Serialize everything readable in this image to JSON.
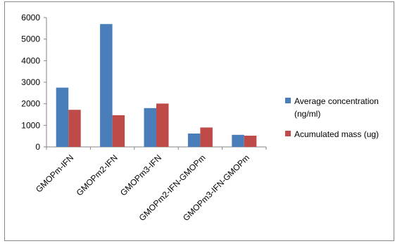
{
  "chart_data": {
    "type": "bar",
    "categories": [
      "GMOPm-IFN",
      "GMOPm2-IFN",
      "GMOPm3-IFN",
      "GMOPm2-IFN-GMOPm",
      "GMOPm3-IFN-GMOPm"
    ],
    "series": [
      {
        "name": "Average concentration (ng/ml)",
        "name_lines": [
          "Average concentration",
          "(ng/ml)"
        ],
        "color": "#4a7ebb",
        "values": [
          2750,
          5700,
          1800,
          620,
          560
        ]
      },
      {
        "name": "Acumulated mass (ug)",
        "color": "#be4b48",
        "values": [
          1720,
          1470,
          2010,
          900,
          520
        ]
      }
    ],
    "y_ticks": [
      0,
      1000,
      2000,
      3000,
      4000,
      5000,
      6000
    ],
    "y_tick_labels": [
      "0",
      "1000",
      "2000",
      "3000",
      "4000",
      "5000",
      "6000"
    ],
    "ylim": [
      0,
      6000
    ],
    "grid": false,
    "legend_position": "right"
  }
}
